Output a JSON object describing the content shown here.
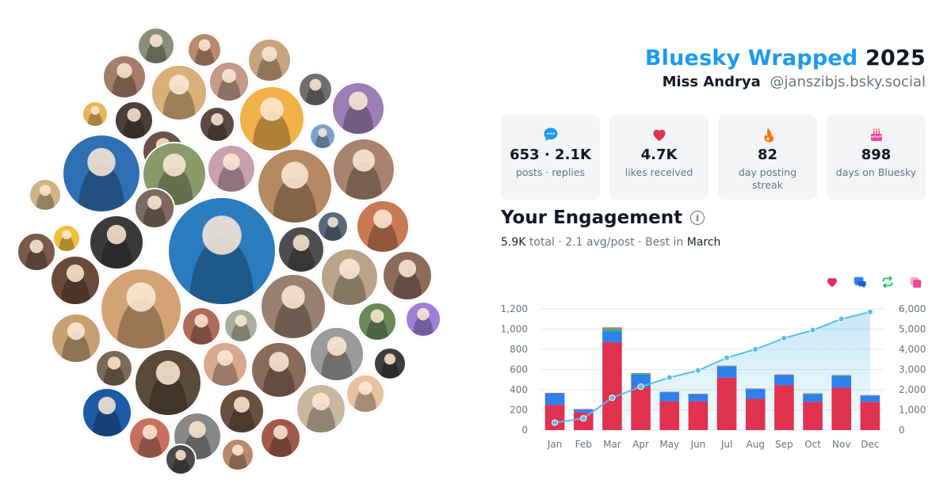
{
  "header": {
    "brand": "Bluesky Wrapped",
    "year": "2025",
    "display_name": "Miss Andrya",
    "handle": "@janszibjs.bsky.social"
  },
  "stats": [
    {
      "icon": "speech-bubble-icon",
      "value": "653 · 2.1K",
      "label": "posts · replies",
      "color": "#1d9bf0"
    },
    {
      "icon": "heart-icon",
      "value": "4.7K",
      "label": "likes received",
      "color": "#e0314f"
    },
    {
      "icon": "fire-icon",
      "value": "82",
      "label": "day posting streak",
      "color": "#f97316"
    },
    {
      "icon": "cake-icon",
      "value": "898",
      "label": "days on Bluesky",
      "color": "#ec4899"
    }
  ],
  "engagement": {
    "title": "Your Engagement",
    "total": "5.9K",
    "total_label": "total",
    "sep1": "·",
    "avg": "2.1 avg/post",
    "sep2": "·",
    "best_label": "Best in",
    "best_month": "March"
  },
  "legend": [
    {
      "icon": "heart-icon",
      "label": "likes",
      "color": "#e0314f"
    },
    {
      "icon": "reply-icon",
      "label": "replies",
      "color": "#2f80ed"
    },
    {
      "icon": "repost-icon",
      "label": "reposts",
      "color": "#22c55e"
    },
    {
      "icon": "quote-icon",
      "label": "quotes",
      "color": "#ec4899"
    }
  ],
  "chart_data": {
    "type": "bar",
    "categories": [
      "Jan",
      "Feb",
      "Mar",
      "Apr",
      "May",
      "Jun",
      "Jul",
      "Aug",
      "Sep",
      "Oct",
      "Nov",
      "Dec"
    ],
    "series": [
      {
        "values": [
          250,
          175,
          870,
          425,
          285,
          285,
          520,
          310,
          445,
          280,
          420,
          280
        ],
        "color": "#e0314f"
      },
      {
        "values": [
          115,
          30,
          110,
          125,
          90,
          70,
          110,
          95,
          100,
          75,
          115,
          60
        ],
        "color": "#2f80ed"
      },
      {
        "values": [
          2,
          2,
          25,
          12,
          3,
          3,
          5,
          5,
          3,
          8,
          8,
          5
        ],
        "color": "#22c55e"
      },
      {
        "values": [
          2,
          1,
          12,
          3,
          2,
          2,
          3,
          2,
          3,
          2,
          3,
          2
        ],
        "color": "#ec4899"
      }
    ],
    "cumulative": {
      "values": [
        370,
        580,
        1600,
        2150,
        2600,
        2950,
        3580,
        4000,
        4550,
        4950,
        5500,
        5850
      ],
      "color": "#5bbde8"
    },
    "ylim": [
      0,
      1200
    ],
    "yticks": [
      "0",
      "200",
      "400",
      "600",
      "800",
      "1,000",
      "1,200"
    ],
    "y2lim": [
      0,
      6000
    ],
    "y2ticks": [
      "0",
      "1,000",
      "2,000",
      "3,000",
      "4,000",
      "5,000",
      "6,000"
    ],
    "grid": true
  },
  "avatar_cloud": {
    "avatars": [
      {
        "color": "#8a8f7a"
      },
      {
        "color": "#b88a6e"
      },
      {
        "color": "#c9a27e"
      },
      {
        "color": "#a67c6a"
      },
      {
        "color": "#d9b07a"
      },
      {
        "color": "#c49a8a"
      },
      {
        "color": "#6f6f6f"
      },
      {
        "color": "#9c7fb5"
      },
      {
        "color": "#e6b65a"
      },
      {
        "color": "#4a3f3a"
      },
      {
        "color": "#f2b24a"
      },
      {
        "color": "#5b4a45"
      },
      {
        "color": "#7ea0c8"
      },
      {
        "color": "#a9836f"
      },
      {
        "color": "#2f6fb3"
      },
      {
        "color": "#6b5248"
      },
      {
        "color": "#8a9a6a"
      },
      {
        "color": "#c8a0b0"
      },
      {
        "color": "#b58a62"
      },
      {
        "color": "#cdb48a"
      },
      {
        "color": "#7b6a60"
      },
      {
        "color": "#5a6a7a"
      },
      {
        "color": "#f0c040"
      },
      {
        "color": "#3a3a3a"
      },
      {
        "color": "#2b7bbf"
      },
      {
        "color": "#c87a55"
      },
      {
        "color": "#7a5a4a"
      },
      {
        "color": "#4d4d4d"
      },
      {
        "color": "#b9a48a"
      },
      {
        "color": "#8b6b5b"
      },
      {
        "color": "#6a4a3a"
      },
      {
        "color": "#d4a374"
      },
      {
        "color": "#9a8070"
      },
      {
        "color": "#b06a5a"
      },
      {
        "color": "#aab0a0"
      },
      {
        "color": "#6a8a5a"
      },
      {
        "color": "#9f7fd8"
      },
      {
        "color": "#c8a070"
      },
      {
        "color": "#7a6a5a"
      },
      {
        "color": "#5a4a3a"
      },
      {
        "color": "#d8a890"
      },
      {
        "color": "#8a6a5a"
      },
      {
        "color": "#9a9a9a"
      },
      {
        "color": "#3d3d3d"
      },
      {
        "color": "#e8c0a0"
      },
      {
        "color": "#1e5aa8"
      },
      {
        "color": "#c87060"
      },
      {
        "color": "#888888"
      },
      {
        "color": "#6a5040"
      },
      {
        "color": "#a05a4a"
      },
      {
        "color": "#c9b8a0"
      },
      {
        "color": "#b88a70"
      },
      {
        "color": "#4a4a4a"
      }
    ]
  }
}
